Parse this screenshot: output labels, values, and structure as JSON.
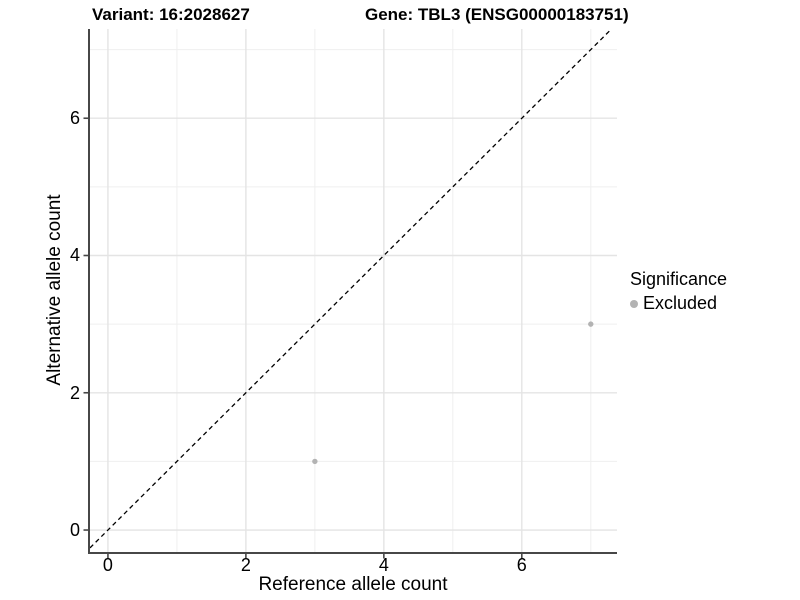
{
  "chart_data": {
    "type": "scatter",
    "title_left": "Variant: 16:2028627",
    "title_right": "Gene: TBL3 (ENSG00000183751)",
    "xlabel": "Reference allele count",
    "ylabel": "Alternative allele count",
    "xlim": [
      -0.26,
      7.38
    ],
    "ylim": [
      -0.32,
      7.3
    ],
    "x_major_ticks": [
      0,
      2,
      4,
      6
    ],
    "y_major_ticks": [
      0,
      2,
      4,
      6
    ],
    "x_minor_ticks": [
      1,
      3,
      5,
      7
    ],
    "y_minor_ticks": [
      1,
      3,
      5,
      7
    ],
    "grid": "on",
    "identity_line": {
      "equation": "y = x",
      "style": "dashed",
      "color": "#000000"
    },
    "series": [
      {
        "name": "Excluded",
        "color": "#b3b3b3",
        "points": [
          [
            3,
            1
          ],
          [
            7,
            3
          ]
        ]
      }
    ],
    "legend": {
      "title": "Significance",
      "position": "right",
      "items": [
        {
          "label": "Excluded",
          "color": "#b3b3b3",
          "marker": "circle"
        }
      ]
    },
    "colors": {
      "background": "#ffffff",
      "axis_line": "#474747",
      "major_grid": "#e4e4e4",
      "minor_grid": "#efefef",
      "text": "#000000",
      "point": "#b3b3b3"
    }
  }
}
